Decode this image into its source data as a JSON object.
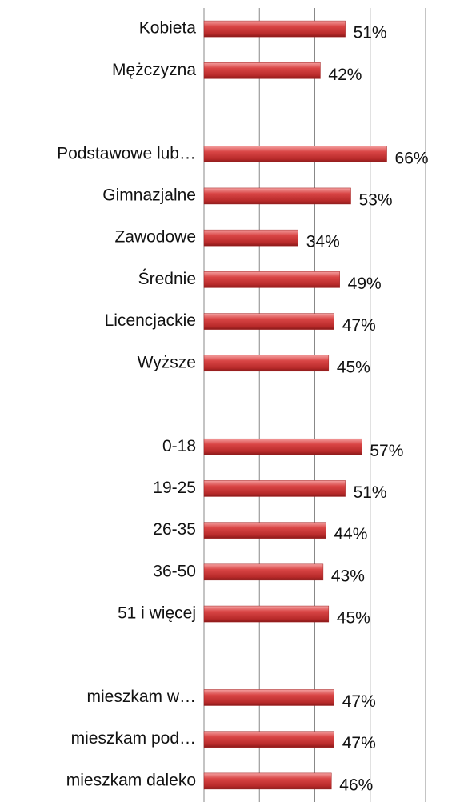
{
  "chart_data": {
    "type": "hbar",
    "categories": [
      "Kobieta",
      "Mężczyzna",
      null,
      "Podstawowe lub…",
      "Gimnazjalne",
      "Zawodowe",
      "Średnie",
      "Licencjackie",
      "Wyższe",
      null,
      "0-18",
      "19-25",
      "26-35",
      "36-50",
      "51 i więcej",
      null,
      "mieszkam w…",
      "mieszkam pod…",
      "mieszkam daleko"
    ],
    "values": [
      51,
      42,
      null,
      66,
      53,
      34,
      49,
      47,
      45,
      null,
      57,
      51,
      44,
      43,
      45,
      null,
      47,
      47,
      46
    ],
    "value_labels": [
      "51%",
      "42%",
      null,
      "66%",
      "53%",
      "34%",
      "49%",
      "47%",
      "45%",
      null,
      "57%",
      "51%",
      "44%",
      "43%",
      "45%",
      null,
      "47%",
      "47%",
      "46%"
    ],
    "color": "#d94545",
    "xlim": [
      0,
      80
    ],
    "xticks": [
      0,
      20,
      40,
      60,
      80
    ],
    "grid": true
  }
}
